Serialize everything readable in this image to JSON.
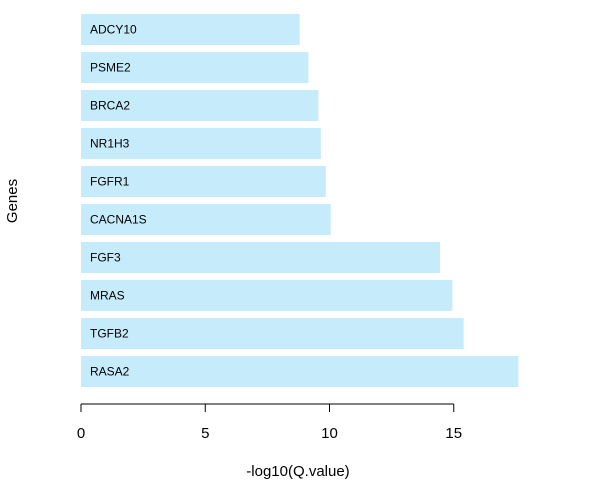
{
  "chart_data": {
    "type": "bar",
    "orientation": "horizontal",
    "categories": [
      "ADCY10",
      "PSME2",
      "BRCA2",
      "NR1H3",
      "FGFR1",
      "CACNA1S",
      "FGF3",
      "MRAS",
      "TGFB2",
      "RASA2"
    ],
    "values": [
      8.8,
      9.15,
      9.55,
      9.65,
      9.85,
      10.05,
      14.45,
      14.95,
      15.4,
      17.6
    ],
    "xlabel": "-log10(Q.value)",
    "ylabel": "Genes",
    "xticks": [
      0,
      5,
      10,
      15
    ],
    "xlim": [
      0,
      17.6
    ],
    "bar_color": "#c6ebfa",
    "grid": false,
    "legend": "none"
  }
}
